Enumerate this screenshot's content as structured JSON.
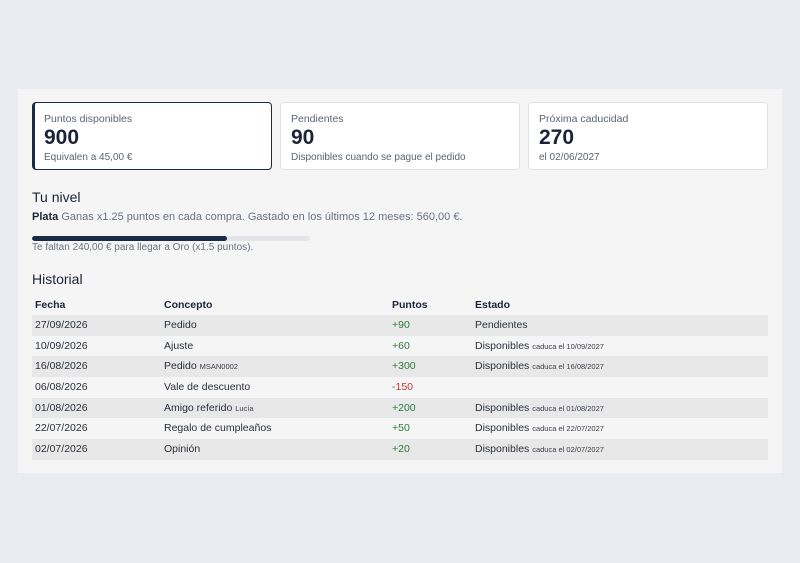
{
  "cards": [
    {
      "label": "Puntos disponibles",
      "value": "900",
      "sub": "Equivalen a 45,00 €"
    },
    {
      "label": "Pendientes",
      "value": "90",
      "sub": "Disponibles cuando se pague el pedido"
    },
    {
      "label": "Próxima caducidad",
      "value": "270",
      "sub": "el 02/06/2027"
    }
  ],
  "level": {
    "title": "Tu nivel",
    "name": "Plata",
    "description": "Ganas x1.25 puntos en cada compra. Gastado en los últimos 12 meses: 560,00 €.",
    "progress": 0.7,
    "progress_text": "Te faltan 240,00 € para llegar a Oro (x1.5 puntos)."
  },
  "history": {
    "title": "Historial",
    "headers": [
      "Fecha",
      "Concepto",
      "Puntos",
      "Estado"
    ],
    "rows": [
      {
        "date": "27/09/2026",
        "concept": "Pedido",
        "concept_detail": "",
        "points": "+90",
        "status": "Pendientes",
        "status_detail": ""
      },
      {
        "date": "10/09/2026",
        "concept": "Ajuste",
        "concept_detail": "",
        "points": "+60",
        "status": "Disponibles",
        "status_detail": "caduca el 10/09/2027"
      },
      {
        "date": "16/08/2026",
        "concept": "Pedido",
        "concept_detail": "MSAN0002",
        "points": "+300",
        "status": "Disponibles",
        "status_detail": "caduca el 16/08/2027"
      },
      {
        "date": "06/08/2026",
        "concept": "Vale de descuento",
        "concept_detail": "",
        "points": "-150",
        "status": "",
        "status_detail": ""
      },
      {
        "date": "01/08/2026",
        "concept": "Amigo referido",
        "concept_detail": "Lucía",
        "points": "+200",
        "status": "Disponibles",
        "status_detail": "caduca el 01/08/2027"
      },
      {
        "date": "22/07/2026",
        "concept": "Regalo de cumpleaños",
        "concept_detail": "",
        "points": "+50",
        "status": "Disponibles",
        "status_detail": "caduca el 22/07/2027"
      },
      {
        "date": "02/07/2026",
        "concept": "Opinión",
        "concept_detail": "",
        "points": "+20",
        "status": "Disponibles",
        "status_detail": "caduca el 02/07/2027"
      }
    ]
  }
}
